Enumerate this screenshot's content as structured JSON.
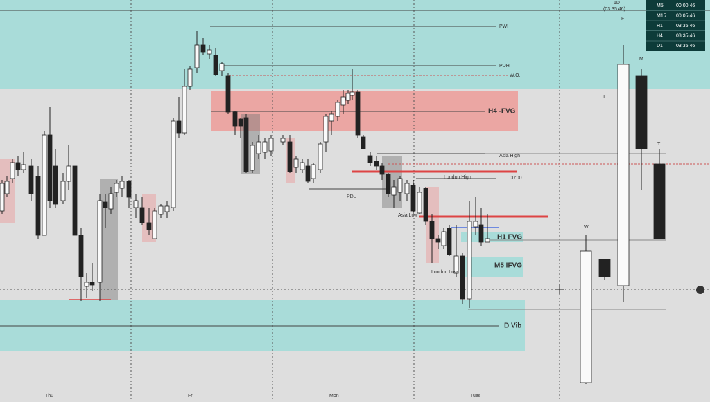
{
  "chart_labels": {
    "pwh": "PWH",
    "pdh": "PDH",
    "wo": "W.O.",
    "h4_fvg": "H4 -FVG",
    "asia_high": "Asia High",
    "midnight": "00:00",
    "london_high": "London High",
    "pdl": "PDL",
    "asia_low": "Asia Low",
    "h1_fvg": "H1 FVG",
    "m5_ifvg": "M5 IFVG",
    "london_low": "London Low",
    "d_vib": "D Vib"
  },
  "days": [
    "Thu",
    "Fri",
    "Mon",
    "Tues"
  ],
  "htf": {
    "timeframe": "1D",
    "countdown": "(03:35:46)",
    "candles": [
      "W",
      "T",
      "F",
      "M",
      "T"
    ]
  },
  "timers": [
    [
      "M5",
      "00:00:46"
    ],
    [
      "M15",
      "00:05:46"
    ],
    [
      "H1",
      "03:35:46"
    ],
    [
      "H4",
      "03:35:46"
    ],
    [
      "D1",
      "03:35:46"
    ]
  ]
}
